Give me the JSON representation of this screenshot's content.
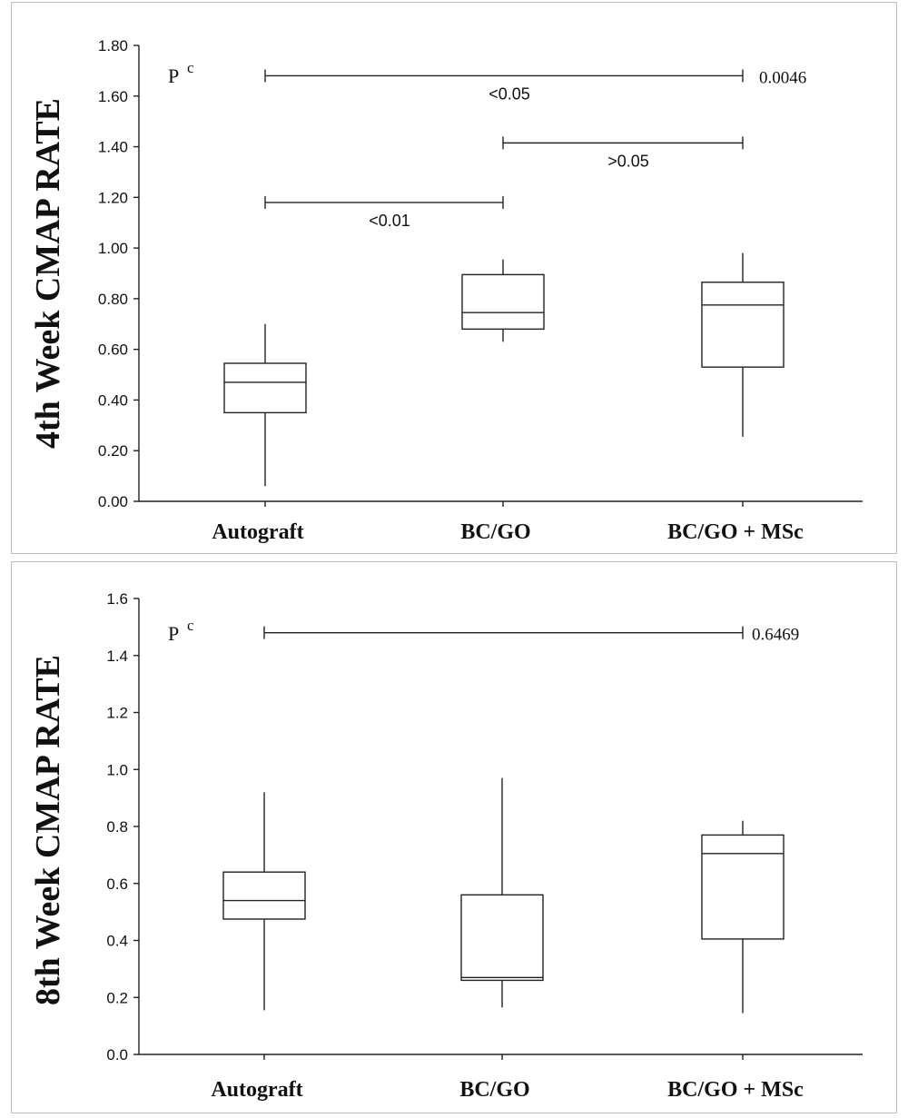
{
  "chart_data": [
    {
      "type": "box",
      "ylabel": "4th Week CMAP RATE",
      "ylim": [
        0,
        1.8
      ],
      "yticks": [
        "0.00",
        "0.20",
        "0.40",
        "0.60",
        "0.80",
        "1.00",
        "1.20",
        "1.40",
        "1.60",
        "1.80"
      ],
      "categories": [
        "Autograft",
        "BC/GO",
        "BC/GO + MSc"
      ],
      "boxes": [
        {
          "min": 0.06,
          "q1": 0.35,
          "median": 0.47,
          "q3": 0.545,
          "max": 0.7
        },
        {
          "min": 0.63,
          "q1": 0.68,
          "median": 0.745,
          "q3": 0.895,
          "max": 0.955
        },
        {
          "min": 0.255,
          "q1": 0.53,
          "median": 0.775,
          "q3": 0.865,
          "max": 0.98
        }
      ],
      "test_label": "P",
      "test_superscript": "c",
      "overall_p": "0.0046",
      "comparisons": [
        {
          "from": 0,
          "to": 2,
          "y": 1.68,
          "label": "<0.05"
        },
        {
          "from": 1,
          "to": 2,
          "y": 1.415,
          "label": ">0.05"
        },
        {
          "from": 0,
          "to": 1,
          "y": 1.18,
          "label": "<0.01"
        }
      ]
    },
    {
      "type": "box",
      "ylabel": "8th Week CMAP RATE",
      "ylim": [
        0,
        1.6
      ],
      "yticks": [
        "0.0",
        "0.2",
        "0.4",
        "0.6",
        "0.8",
        "1.0",
        "1.2",
        "1.4",
        "1.6"
      ],
      "categories": [
        "Autograft",
        "BC/GO",
        "BC/GO + MSc"
      ],
      "boxes": [
        {
          "min": 0.155,
          "q1": 0.475,
          "median": 0.54,
          "q3": 0.64,
          "max": 0.92
        },
        {
          "min": 0.165,
          "q1": 0.26,
          "median": 0.27,
          "q3": 0.56,
          "max": 0.97
        },
        {
          "min": 0.145,
          "q1": 0.405,
          "median": 0.705,
          "q3": 0.77,
          "max": 0.82
        }
      ],
      "test_label": "P",
      "test_superscript": "c",
      "overall_p": "0.6469",
      "comparisons": [
        {
          "from": 0,
          "to": 2,
          "y": 1.48,
          "label": ""
        }
      ]
    }
  ]
}
